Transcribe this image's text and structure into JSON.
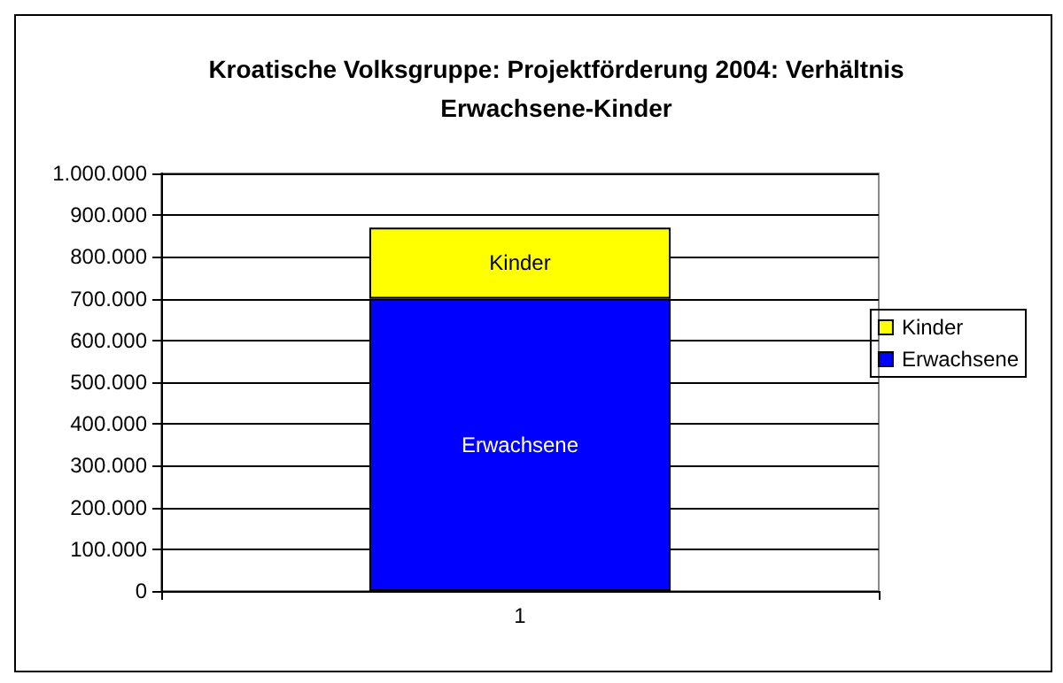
{
  "chart_data": {
    "type": "bar",
    "title": "Kroatische Volksgruppe: Projektförderung 2004: Verhältnis\nErwachsene-Kinder",
    "categories": [
      "1"
    ],
    "stacked": true,
    "series": [
      {
        "name": "Erwachsene",
        "color": "#0000ff",
        "values": [
          700000
        ]
      },
      {
        "name": "Kinder",
        "color": "#ffff00",
        "values": [
          170000
        ]
      }
    ],
    "ylim": [
      0,
      1000000
    ],
    "yticks": [
      {
        "value": 0,
        "label": "0"
      },
      {
        "value": 100000,
        "label": "100.000"
      },
      {
        "value": 200000,
        "label": "200.000"
      },
      {
        "value": 300000,
        "label": "300.000"
      },
      {
        "value": 400000,
        "label": "400.000"
      },
      {
        "value": 500000,
        "label": "500.000"
      },
      {
        "value": 600000,
        "label": "600.000"
      },
      {
        "value": 700000,
        "label": "700.000"
      },
      {
        "value": 800000,
        "label": "800.000"
      },
      {
        "value": 900000,
        "label": "900.000"
      },
      {
        "value": 1000000,
        "label": "1.000.000"
      }
    ],
    "grid": "y",
    "legend": "right"
  }
}
